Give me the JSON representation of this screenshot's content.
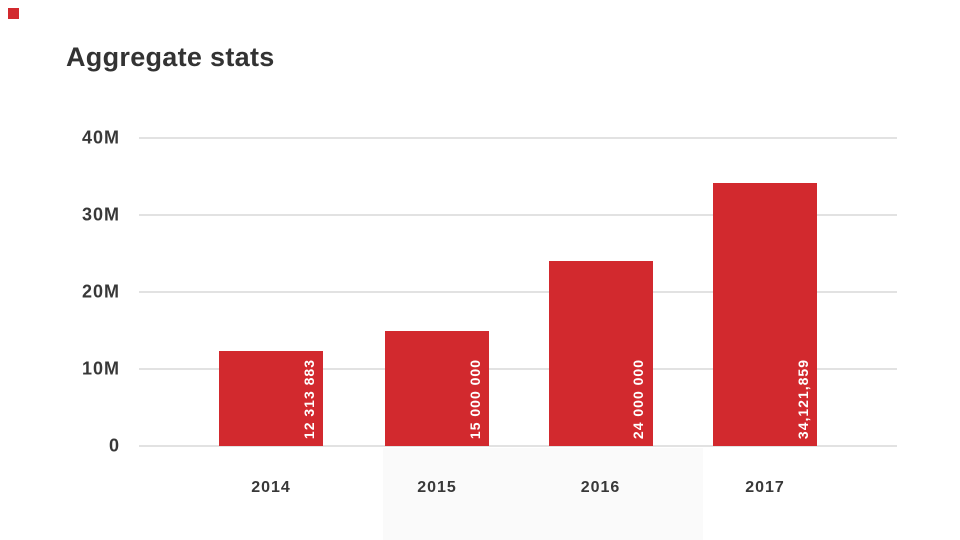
{
  "title": "Aggregate stats",
  "colors": {
    "accent_red": "#d2292e",
    "text_dark": "#383838",
    "title_text": "#333333",
    "gridline": "#e2e2e2",
    "background": "#ffffff",
    "bar_value_text": "#ffffff"
  },
  "chart_data": {
    "type": "bar",
    "title": "Aggregate stats",
    "categories": [
      "2014",
      "2015",
      "2016",
      "2017"
    ],
    "values": [
      12313883,
      15000000,
      24000000,
      34121859
    ],
    "bar_value_labels": [
      "12 313 883",
      "15 000 000",
      "24 000 000",
      "34,121,859"
    ],
    "y_ticks": {
      "labels": [
        "40M",
        "30M",
        "20M",
        "10M",
        "0"
      ],
      "values": [
        40000000,
        30000000,
        20000000,
        10000000,
        0
      ]
    },
    "ylim": [
      0,
      40000000
    ],
    "grid": true,
    "legend": false,
    "bar_color": "#d2292e",
    "value_label_orientation": "vertical-bottom-to-top"
  }
}
